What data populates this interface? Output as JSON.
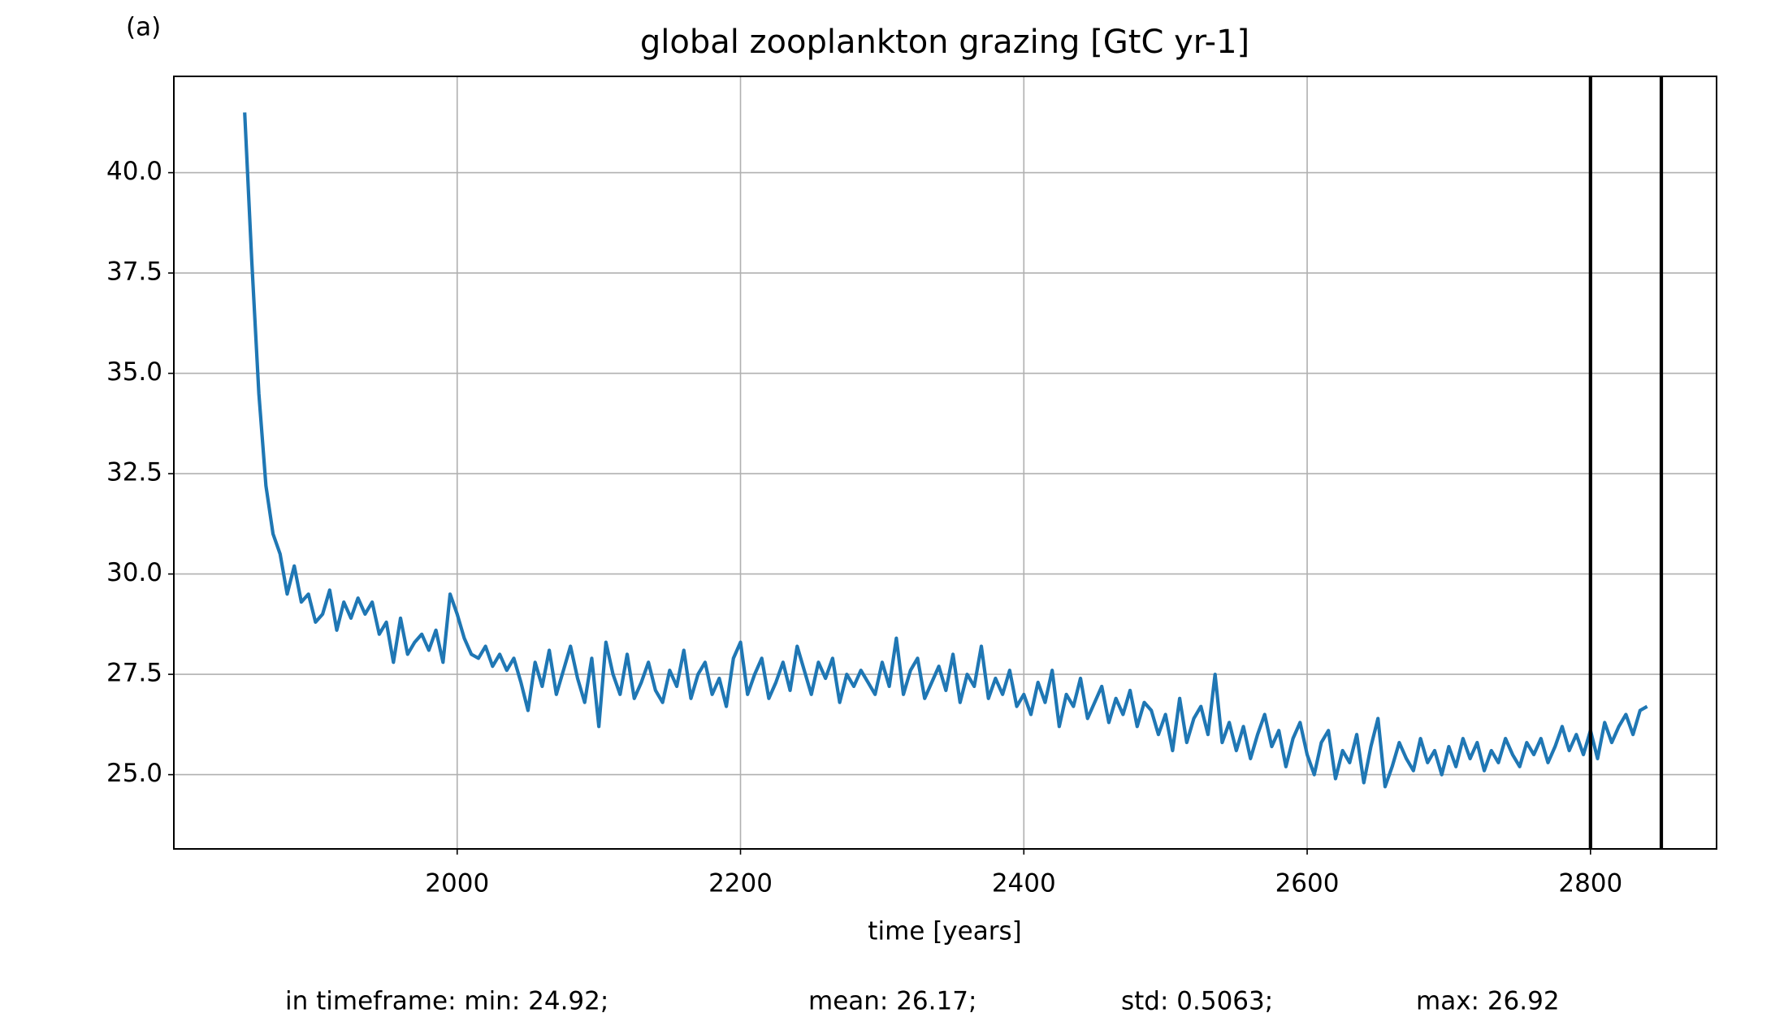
{
  "chart_data": {
    "type": "line",
    "panel_label": "(a)",
    "title": "global zooplankton grazing [GtC yr-1]",
    "x_label": "time [years]",
    "footer": [
      "in timeframe: min: 24.92;",
      "mean: 26.17;",
      "std: 0.5063;",
      "max: 26.92"
    ],
    "xlim": [
      1800,
      2889
    ],
    "ylim": [
      23.15,
      42.4
    ],
    "xticks": [
      2000,
      2200,
      2400,
      2600,
      2800
    ],
    "yticks": [
      {
        "value": 25,
        "label": "25.0"
      },
      27.5,
      {
        "value": 30,
        "label": "30.0"
      },
      32.5,
      {
        "value": 35,
        "label": "35.0"
      },
      37.5,
      {
        "value": 40,
        "label": "40.0"
      }
    ],
    "grid": true,
    "vlines": [
      2800,
      2850
    ],
    "vline_color": "#000000",
    "x": [
      1850,
      1855,
      1860,
      1865,
      1870,
      1875,
      1880,
      1885,
      1890,
      1895,
      1900,
      1905,
      1910,
      1915,
      1920,
      1925,
      1930,
      1935,
      1940,
      1945,
      1950,
      1955,
      1960,
      1965,
      1970,
      1975,
      1980,
      1985,
      1990,
      1995,
      2000,
      2005,
      2010,
      2015,
      2020,
      2025,
      2030,
      2035,
      2040,
      2045,
      2050,
      2055,
      2060,
      2065,
      2070,
      2075,
      2080,
      2085,
      2090,
      2095,
      2100,
      2105,
      2110,
      2115,
      2120,
      2125,
      2130,
      2135,
      2140,
      2145,
      2150,
      2155,
      2160,
      2165,
      2170,
      2175,
      2180,
      2185,
      2190,
      2195,
      2200,
      2205,
      2210,
      2215,
      2220,
      2225,
      2230,
      2235,
      2240,
      2245,
      2250,
      2255,
      2260,
      2265,
      2270,
      2275,
      2280,
      2285,
      2290,
      2295,
      2300,
      2305,
      2310,
      2315,
      2320,
      2325,
      2330,
      2335,
      2340,
      2345,
      2350,
      2355,
      2360,
      2365,
      2370,
      2375,
      2380,
      2385,
      2390,
      2395,
      2400,
      2405,
      2410,
      2415,
      2420,
      2425,
      2430,
      2435,
      2440,
      2445,
      2450,
      2455,
      2460,
      2465,
      2470,
      2475,
      2480,
      2485,
      2490,
      2495,
      2500,
      2505,
      2510,
      2515,
      2520,
      2525,
      2530,
      2535,
      2540,
      2545,
      2550,
      2555,
      2560,
      2565,
      2570,
      2575,
      2580,
      2585,
      2590,
      2595,
      2600,
      2605,
      2610,
      2615,
      2620,
      2625,
      2630,
      2635,
      2640,
      2645,
      2650,
      2655,
      2660,
      2665,
      2670,
      2675,
      2680,
      2685,
      2690,
      2695,
      2700,
      2705,
      2710,
      2715,
      2720,
      2725,
      2730,
      2735,
      2740,
      2745,
      2750,
      2755,
      2760,
      2765,
      2770,
      2775,
      2780,
      2785,
      2790,
      2795,
      2800,
      2805,
      2810,
      2815,
      2820,
      2825,
      2830,
      2835,
      2840
    ],
    "series": [
      {
        "color": "#1f77b4",
        "values": [
          41.5,
          37.8,
          34.5,
          32.2,
          31.0,
          30.5,
          29.5,
          30.2,
          29.3,
          29.5,
          28.8,
          29.0,
          29.6,
          28.6,
          29.3,
          28.9,
          29.4,
          29.0,
          29.3,
          28.5,
          28.8,
          27.8,
          28.9,
          28.0,
          28.3,
          28.5,
          28.1,
          28.6,
          27.8,
          29.5,
          29.0,
          28.4,
          28.0,
          27.9,
          28.2,
          27.7,
          28.0,
          27.6,
          27.9,
          27.3,
          26.6,
          27.8,
          27.2,
          28.1,
          27.0,
          27.6,
          28.2,
          27.4,
          26.8,
          27.9,
          26.2,
          28.3,
          27.5,
          27.0,
          28.0,
          26.9,
          27.3,
          27.8,
          27.1,
          26.8,
          27.6,
          27.2,
          28.1,
          26.9,
          27.5,
          27.8,
          27.0,
          27.4,
          26.7,
          27.9,
          28.3,
          27.0,
          27.5,
          27.9,
          26.9,
          27.3,
          27.8,
          27.1,
          28.2,
          27.6,
          27.0,
          27.8,
          27.4,
          27.9,
          26.8,
          27.5,
          27.2,
          27.6,
          27.3,
          27.0,
          27.8,
          27.2,
          28.4,
          27.0,
          27.6,
          27.9,
          26.9,
          27.3,
          27.7,
          27.1,
          28.0,
          26.8,
          27.5,
          27.2,
          28.2,
          26.9,
          27.4,
          27.0,
          27.6,
          26.7,
          27.0,
          26.5,
          27.3,
          26.8,
          27.6,
          26.2,
          27.0,
          26.7,
          27.4,
          26.4,
          26.8,
          27.2,
          26.3,
          26.9,
          26.5,
          27.1,
          26.2,
          26.8,
          26.6,
          26.0,
          26.5,
          25.6,
          26.9,
          25.8,
          26.4,
          26.7,
          26.0,
          27.5,
          25.8,
          26.3,
          25.6,
          26.2,
          25.4,
          26.0,
          26.5,
          25.7,
          26.1,
          25.2,
          25.9,
          26.3,
          25.5,
          25.0,
          25.8,
          26.1,
          24.9,
          25.6,
          25.3,
          26.0,
          24.8,
          25.7,
          26.4,
          24.7,
          25.2,
          25.8,
          25.4,
          25.1,
          25.9,
          25.3,
          25.6,
          25.0,
          25.7,
          25.2,
          25.9,
          25.4,
          25.8,
          25.1,
          25.6,
          25.3,
          25.9,
          25.5,
          25.2,
          25.8,
          25.5,
          25.9,
          25.3,
          25.7,
          26.2,
          25.6,
          26.0,
          25.5,
          26.1,
          25.4,
          26.3,
          25.8,
          26.2,
          26.5,
          26.0,
          26.6,
          26.7
        ]
      }
    ]
  }
}
